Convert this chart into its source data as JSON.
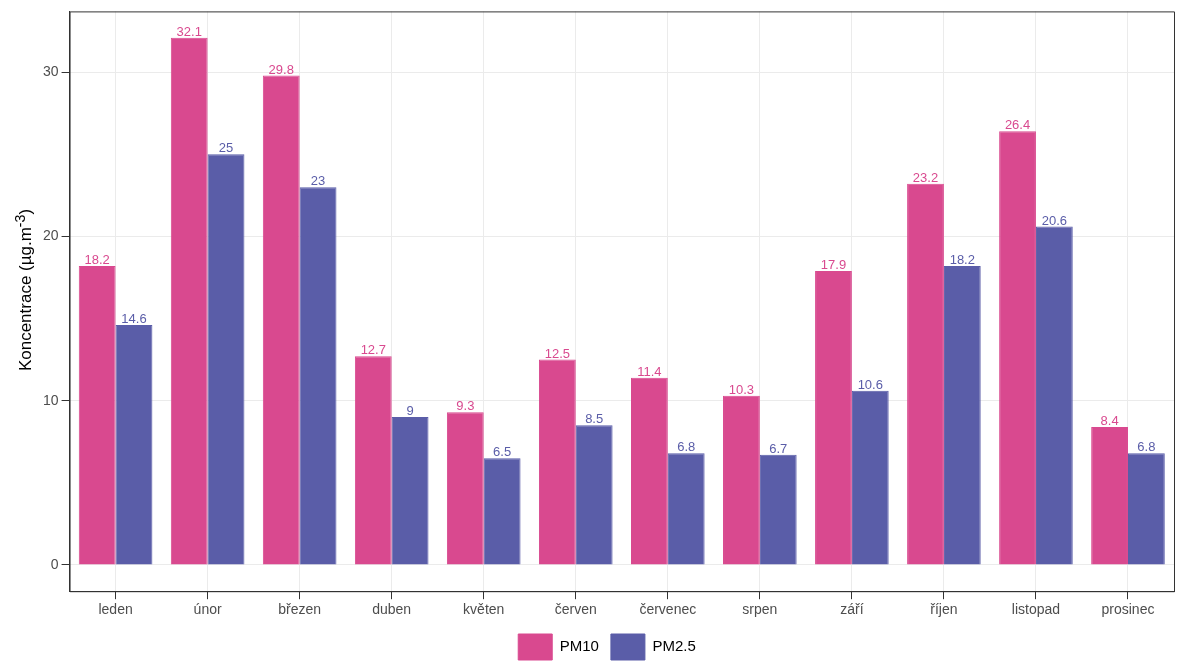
{
  "chart_data": {
    "type": "bar",
    "ylabel": "Koncentrace (µg.m$^{-3}$)",
    "categories": [
      "leden",
      "únor",
      "březen",
      "duben",
      "květen",
      "červen",
      "červenec",
      "srpen",
      "září",
      "říjen",
      "listopad",
      "prosinec"
    ],
    "series": [
      {
        "name": "PM10",
        "color": "#d9498f",
        "values": [
          18.2,
          32.1,
          29.8,
          12.7,
          9.3,
          12.5,
          11.4,
          10.3,
          17.9,
          23.2,
          26.4,
          8.4
        ]
      },
      {
        "name": "PM2.5",
        "color": "#5a5da8",
        "values": [
          14.6,
          25,
          23,
          9,
          6.5,
          8.5,
          6.8,
          6.7,
          10.6,
          18.2,
          20.6,
          6.8
        ]
      }
    ],
    "ylim": [
      -1.6,
      33.7
    ],
    "yticks": [
      0,
      10,
      20,
      30
    ],
    "grid": true,
    "legend": "bottom",
    "data_labels": true
  }
}
